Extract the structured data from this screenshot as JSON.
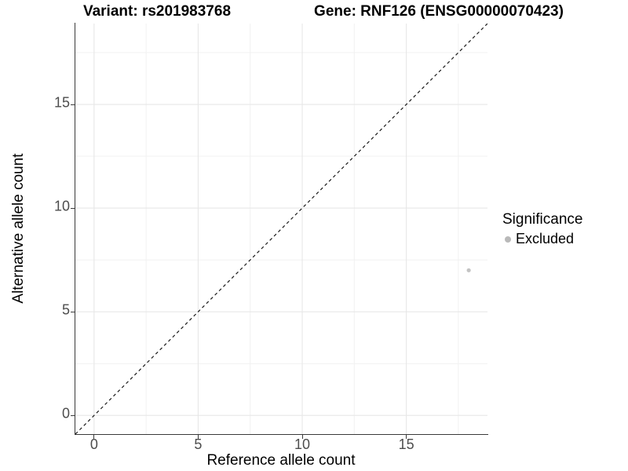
{
  "chart_data": {
    "type": "scatter",
    "title_left": "Variant: rs201983768",
    "title_right": "Gene: RNF126 (ENSG00000070423)",
    "xlabel": "Reference allele count",
    "ylabel": "Alternative allele count",
    "xlim": [
      -0.9,
      18.9
    ],
    "ylim": [
      -0.9,
      18.9
    ],
    "x_ticks": [
      0,
      5,
      10,
      15
    ],
    "x_tick_labels": [
      "0",
      "5",
      "10",
      "15"
    ],
    "y_ticks": [
      0,
      5,
      10,
      15
    ],
    "y_tick_labels": [
      "0",
      "5",
      "10",
      "15"
    ],
    "x_minor_ticks": [
      2.5,
      7.5,
      12.5,
      17.5
    ],
    "y_minor_ticks": [
      2.5,
      7.5,
      12.5,
      17.5
    ],
    "grid": {
      "show": true,
      "major_color": "#e7e7e7",
      "minor_color": "#f1f1f1"
    },
    "reference_line": {
      "type": "identity",
      "style": "dashed",
      "color": "#1a1a1a",
      "x1": -0.9,
      "y1": -0.9,
      "x2": 18.9,
      "y2": 18.9
    },
    "series": [
      {
        "name": "Excluded",
        "color": "#c3c3c3",
        "point_radius": 2.6,
        "points": [
          {
            "x": 18,
            "y": 7
          }
        ]
      }
    ],
    "legend": {
      "title": "Significance",
      "position": "right",
      "items": [
        {
          "label": "Excluded",
          "marker": "circle",
          "color": "#b9b9b9"
        }
      ]
    },
    "colors": {
      "axis": "#3a3a3a",
      "tick_label": "#4d4d4d",
      "title": "#000000",
      "background": "#ffffff"
    }
  }
}
